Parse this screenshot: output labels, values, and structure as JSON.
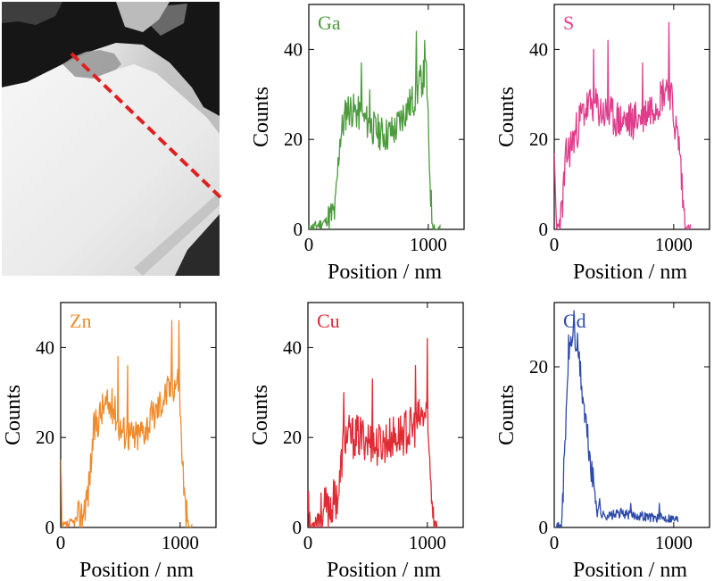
{
  "xlabel": "Position / nm",
  "ylabel": "Counts",
  "image": {
    "kind": "STEM micrograph with EDS line-scan path",
    "scan_line_color": "#e02020"
  },
  "chart_data": [
    {
      "type": "line",
      "element": "Ga",
      "color": "#4c9a3c",
      "xlabel": "Position / nm",
      "ylabel": "Counts",
      "xlim": [
        0,
        1300
      ],
      "ylim": [
        0,
        50
      ],
      "xticks": [
        0,
        1000
      ],
      "yticks": [
        0,
        20,
        40
      ],
      "profile": [
        [
          0,
          0
        ],
        [
          160,
          2
        ],
        [
          220,
          4
        ],
        [
          260,
          20
        ],
        [
          320,
          27
        ],
        [
          400,
          26
        ],
        [
          480,
          24
        ],
        [
          560,
          22
        ],
        [
          640,
          21
        ],
        [
          720,
          22
        ],
        [
          800,
          26
        ],
        [
          880,
          29
        ],
        [
          940,
          33
        ],
        [
          985,
          35
        ],
        [
          1005,
          18
        ],
        [
          1030,
          2
        ],
        [
          1060,
          0
        ],
        [
          1100,
          0
        ]
      ],
      "noise": 8,
      "spikes": [
        [
          440,
          37
        ],
        [
          510,
          31
        ],
        [
          900,
          44
        ],
        [
          970,
          42
        ]
      ],
      "seed": 11
    },
    {
      "type": "line",
      "element": "S",
      "color": "#e03c8c",
      "xlabel": "Position / nm",
      "ylabel": "Counts",
      "xlim": [
        0,
        1300
      ],
      "ylim": [
        0,
        50
      ],
      "xticks": [
        0,
        1000
      ],
      "yticks": [
        0,
        20,
        40
      ],
      "profile": [
        [
          0,
          13
        ],
        [
          20,
          0
        ],
        [
          60,
          3
        ],
        [
          100,
          16
        ],
        [
          160,
          20
        ],
        [
          240,
          26
        ],
        [
          320,
          28
        ],
        [
          400,
          26
        ],
        [
          480,
          25
        ],
        [
          560,
          24
        ],
        [
          640,
          24
        ],
        [
          720,
          25
        ],
        [
          800,
          27
        ],
        [
          880,
          29
        ],
        [
          960,
          33
        ],
        [
          1000,
          25
        ],
        [
          1050,
          18
        ],
        [
          1080,
          5
        ],
        [
          1110,
          0
        ],
        [
          1140,
          0
        ]
      ],
      "noise": 9,
      "spikes": [
        [
          330,
          40
        ],
        [
          450,
          42
        ],
        [
          960,
          46
        ],
        [
          740,
          37
        ]
      ],
      "seed": 23
    },
    {
      "type": "line",
      "element": "Zn",
      "color": "#f08a2a",
      "xlabel": "Position / nm",
      "ylabel": "Counts",
      "xlim": [
        0,
        1300
      ],
      "ylim": [
        0,
        50
      ],
      "xticks": [
        0,
        1000
      ],
      "yticks": [
        0,
        20,
        40
      ],
      "profile": [
        [
          0,
          14
        ],
        [
          10,
          0
        ],
        [
          100,
          1
        ],
        [
          180,
          3
        ],
        [
          230,
          8
        ],
        [
          280,
          22
        ],
        [
          360,
          27
        ],
        [
          440,
          27
        ],
        [
          500,
          22
        ],
        [
          560,
          21
        ],
        [
          620,
          20
        ],
        [
          700,
          22
        ],
        [
          780,
          25
        ],
        [
          860,
          29
        ],
        [
          940,
          32
        ],
        [
          990,
          33
        ],
        [
          1010,
          20
        ],
        [
          1040,
          5
        ],
        [
          1070,
          0
        ],
        [
          1100,
          0
        ]
      ],
      "noise": 8,
      "spikes": [
        [
          480,
          38
        ],
        [
          560,
          36
        ],
        [
          930,
          46
        ],
        [
          990,
          46
        ]
      ],
      "seed": 37
    },
    {
      "type": "line",
      "element": "Cu",
      "color": "#e02a34",
      "xlabel": "Position / nm",
      "ylabel": "Counts",
      "xlim": [
        0,
        1300
      ],
      "ylim": [
        0,
        50
      ],
      "xticks": [
        0,
        1000
      ],
      "yticks": [
        0,
        20,
        40
      ],
      "profile": [
        [
          0,
          8
        ],
        [
          20,
          0
        ],
        [
          100,
          3
        ],
        [
          200,
          5
        ],
        [
          260,
          8
        ],
        [
          300,
          20
        ],
        [
          400,
          20
        ],
        [
          480,
          20
        ],
        [
          560,
          18
        ],
        [
          640,
          19
        ],
        [
          720,
          20
        ],
        [
          800,
          21
        ],
        [
          880,
          22
        ],
        [
          940,
          24
        ],
        [
          990,
          25
        ],
        [
          1020,
          14
        ],
        [
          1050,
          3
        ],
        [
          1080,
          0
        ]
      ],
      "noise": 10,
      "spikes": [
        [
          300,
          30
        ],
        [
          540,
          33
        ],
        [
          900,
          36
        ],
        [
          1000,
          42
        ]
      ],
      "seed": 53
    },
    {
      "type": "line",
      "element": "Cd",
      "color": "#2e4aa8",
      "xlabel": "Position / nm",
      "ylabel": "Counts",
      "xlim": [
        0,
        1300
      ],
      "ylim": [
        0,
        28
      ],
      "xticks": [
        0,
        1000
      ],
      "yticks": [
        0,
        20
      ],
      "profile": [
        [
          0,
          0
        ],
        [
          60,
          0
        ],
        [
          90,
          10
        ],
        [
          120,
          22
        ],
        [
          160,
          24
        ],
        [
          200,
          22
        ],
        [
          240,
          16
        ],
        [
          280,
          11
        ],
        [
          320,
          6
        ],
        [
          360,
          3
        ],
        [
          400,
          1.5
        ],
        [
          480,
          1.5
        ],
        [
          560,
          1.8
        ],
        [
          640,
          1.5
        ],
        [
          720,
          1.5
        ],
        [
          800,
          1.3
        ],
        [
          880,
          1.2
        ],
        [
          960,
          1.2
        ],
        [
          1040,
          1
        ]
      ],
      "noise": 4,
      "spikes": [
        [
          165,
          27
        ],
        [
          640,
          3
        ],
        [
          880,
          3
        ]
      ],
      "seed": 71
    }
  ]
}
